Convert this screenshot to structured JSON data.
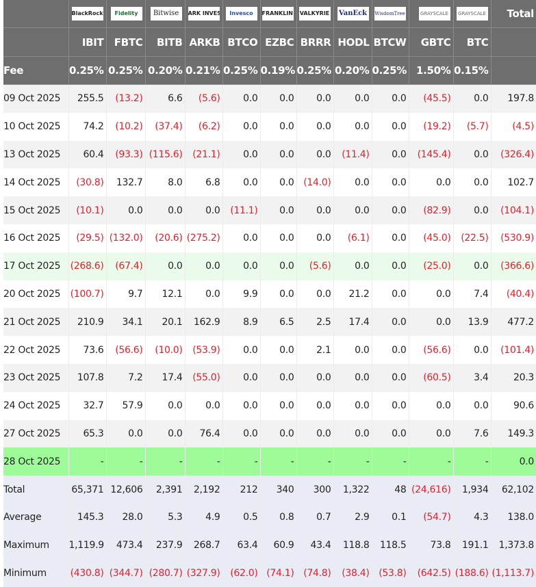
{
  "columns": [
    {
      "issuer": "BlackRock",
      "ticker": "IBIT",
      "fee": "0.25%"
    },
    {
      "issuer": "Fidelity",
      "ticker": "FBTC",
      "fee": "0.25%"
    },
    {
      "issuer": "Bitwise",
      "ticker": "BITB",
      "fee": "0.20%"
    },
    {
      "issuer": "ARK INVEST",
      "ticker": "ARKB",
      "fee": "0.21%"
    },
    {
      "issuer": "Invesco",
      "ticker": "BTCO",
      "fee": "0.25%"
    },
    {
      "issuer": "FRANKLIN TEMPLETON",
      "ticker": "EZBC",
      "fee": "0.19%"
    },
    {
      "issuer": "VALKYRIE",
      "ticker": "BRRR",
      "fee": "0.25%"
    },
    {
      "issuer": "VanEck",
      "ticker": "HODL",
      "fee": "0.20%"
    },
    {
      "issuer": "WisdomTree",
      "ticker": "BTCW",
      "fee": "0.25%"
    },
    {
      "issuer": "GRAYSCALE",
      "ticker": "GBTC",
      "fee": "1.50%"
    },
    {
      "issuer": "GRAYSCALE",
      "ticker": "BTC",
      "fee": "0.15%"
    }
  ],
  "header": {
    "total_label": "Total",
    "fee_label": "Fee"
  },
  "colors": {
    "header_bg": "#6e6e6e",
    "negative": "#e3212d",
    "highlight_row": "#ebfbeb",
    "today_row": "#9dfb98",
    "summary_bg": "#e9ecf5"
  },
  "rows": [
    {
      "date": "09 Oct 2025",
      "values": [
        "255.5",
        "(13.2)",
        "6.6",
        "(5.6)",
        "0.0",
        "0.0",
        "0.0",
        "0.0",
        "0.0",
        "(45.5)",
        "0.0",
        "197.8"
      ]
    },
    {
      "date": "10 Oct 2025",
      "values": [
        "74.2",
        "(10.2)",
        "(37.4)",
        "(6.2)",
        "0.0",
        "0.0",
        "0.0",
        "0.0",
        "0.0",
        "(19.2)",
        "(5.7)",
        "(4.5)"
      ]
    },
    {
      "date": "13 Oct 2025",
      "values": [
        "60.4",
        "(93.3)",
        "(115.6)",
        "(21.1)",
        "0.0",
        "0.0",
        "0.0",
        "(11.4)",
        "0.0",
        "(145.4)",
        "0.0",
        "(326.4)"
      ]
    },
    {
      "date": "14 Oct 2025",
      "values": [
        "(30.8)",
        "132.7",
        "8.0",
        "6.8",
        "0.0",
        "0.0",
        "(14.0)",
        "0.0",
        "0.0",
        "0.0",
        "0.0",
        "102.7"
      ]
    },
    {
      "date": "15 Oct 2025",
      "values": [
        "(10.1)",
        "0.0",
        "0.0",
        "0.0",
        "(11.1)",
        "0.0",
        "0.0",
        "0.0",
        "0.0",
        "(82.9)",
        "0.0",
        "(104.1)"
      ]
    },
    {
      "date": "16 Oct 2025",
      "values": [
        "(29.5)",
        "(132.0)",
        "(20.6)",
        "(275.2)",
        "0.0",
        "0.0",
        "0.0",
        "(6.1)",
        "0.0",
        "(45.0)",
        "(22.5)",
        "(530.9)"
      ]
    },
    {
      "date": "17 Oct 2025",
      "highlight": true,
      "values": [
        "(268.6)",
        "(67.4)",
        "0.0",
        "0.0",
        "0.0",
        "0.0",
        "(5.6)",
        "0.0",
        "0.0",
        "(25.0)",
        "0.0",
        "(366.6)"
      ]
    },
    {
      "date": "20 Oct 2025",
      "values": [
        "(100.7)",
        "9.7",
        "12.1",
        "0.0",
        "9.9",
        "0.0",
        "0.0",
        "21.2",
        "0.0",
        "0.0",
        "7.4",
        "(40.4)"
      ]
    },
    {
      "date": "21 Oct 2025",
      "values": [
        "210.9",
        "34.1",
        "20.1",
        "162.9",
        "8.9",
        "6.5",
        "2.5",
        "17.4",
        "0.0",
        "0.0",
        "13.9",
        "477.2"
      ]
    },
    {
      "date": "22 Oct 2025",
      "values": [
        "73.6",
        "(56.6)",
        "(10.0)",
        "(53.9)",
        "0.0",
        "0.0",
        "2.1",
        "0.0",
        "0.0",
        "(56.6)",
        "0.0",
        "(101.4)"
      ]
    },
    {
      "date": "23 Oct 2025",
      "values": [
        "107.8",
        "7.2",
        "17.4",
        "(55.0)",
        "0.0",
        "0.0",
        "0.0",
        "0.0",
        "0.0",
        "(60.5)",
        "3.4",
        "20.3"
      ]
    },
    {
      "date": "24 Oct 2025",
      "values": [
        "32.7",
        "57.9",
        "0.0",
        "0.0",
        "0.0",
        "0.0",
        "0.0",
        "0.0",
        "0.0",
        "0.0",
        "0.0",
        "90.6"
      ]
    },
    {
      "date": "27 Oct 2025",
      "values": [
        "65.3",
        "0.0",
        "0.0",
        "76.4",
        "0.0",
        "0.0",
        "0.0",
        "0.0",
        "0.0",
        "0.0",
        "7.6",
        "149.3"
      ]
    },
    {
      "date": "28 Oct 2025",
      "today": true,
      "values": [
        "-",
        "-",
        "-",
        "-",
        "-",
        "-",
        "-",
        "-",
        "-",
        "-",
        "-",
        "0.0"
      ]
    }
  ],
  "summary": [
    {
      "label": "Total",
      "values": [
        "65,371",
        "12,606",
        "2,391",
        "2,192",
        "212",
        "340",
        "300",
        "1,322",
        "48",
        "(24,616)",
        "1,934",
        "62,102"
      ]
    },
    {
      "label": "Average",
      "values": [
        "145.3",
        "28.0",
        "5.3",
        "4.9",
        "0.5",
        "0.8",
        "0.7",
        "2.9",
        "0.1",
        "(54.7)",
        "4.3",
        "138.0"
      ]
    },
    {
      "label": "Maximum",
      "values": [
        "1,119.9",
        "473.4",
        "237.9",
        "268.7",
        "63.4",
        "60.9",
        "43.4",
        "118.8",
        "118.5",
        "73.8",
        "191.1",
        "1,373.8"
      ]
    },
    {
      "label": "Minimum",
      "values": [
        "(430.8)",
        "(344.7)",
        "(280.7)",
        "(327.9)",
        "(62.0)",
        "(74.1)",
        "(74.8)",
        "(38.4)",
        "(53.8)",
        "(642.5)",
        "(188.6)",
        "(1,113.7)"
      ]
    }
  ]
}
